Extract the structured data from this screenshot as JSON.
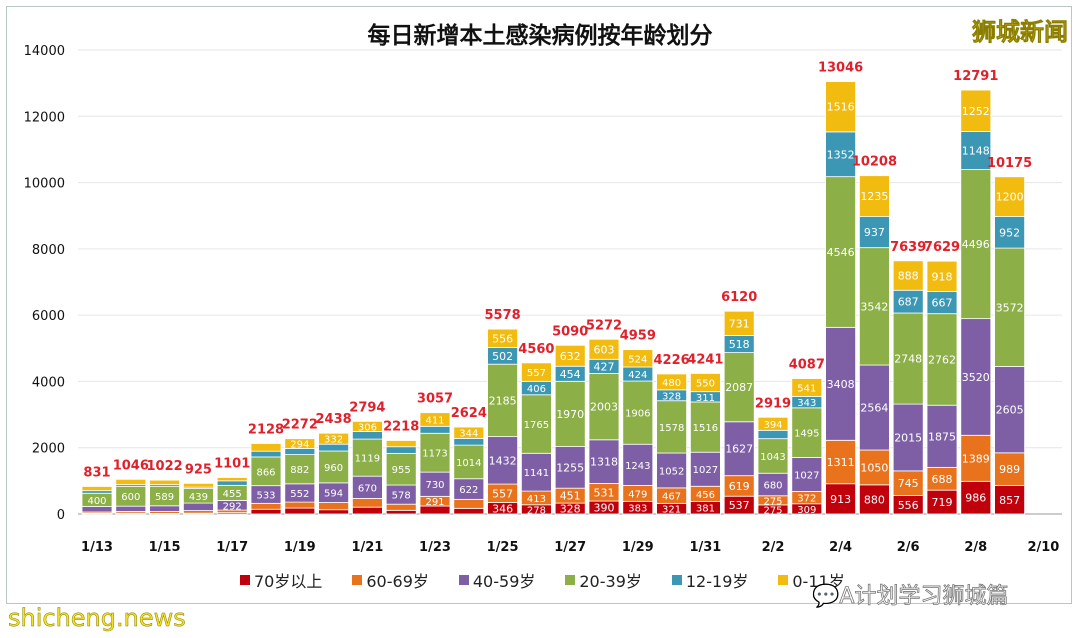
{
  "chart_data": {
    "type": "bar",
    "stacked": true,
    "title": "每日新增本土感染病例按年龄划分",
    "categories": [
      "1/13",
      "1/14",
      "1/15",
      "1/16",
      "1/17",
      "1/18",
      "1/19",
      "1/20",
      "1/21",
      "1/22",
      "1/23",
      "1/24",
      "1/25",
      "1/26",
      "1/27",
      "1/28",
      "1/29",
      "1/30",
      "1/31",
      "2/1",
      "2/2",
      "2/3",
      "2/4",
      "2/5",
      "2/6",
      "2/7",
      "2/8",
      "2/9"
    ],
    "x_tick_labels": [
      "1/13",
      "1/15",
      "1/17",
      "1/19",
      "1/21",
      "1/23",
      "1/25",
      "1/27",
      "1/29",
      "1/31",
      "2/2",
      "2/4",
      "2/6",
      "2/8",
      "2/10"
    ],
    "totals": [
      831,
      1046,
      1022,
      925,
      1101,
      2128,
      2272,
      2438,
      2794,
      2218,
      3057,
      2624,
      5578,
      4560,
      5090,
      5272,
      4959,
      4226,
      4241,
      6120,
      2919,
      4087,
      13046,
      10208,
      7639,
      7629,
      12791,
      10175
    ],
    "series": [
      {
        "name": "70岁以上",
        "color": "#c0000b",
        "values": [
          20,
          25,
          18,
          25,
          40,
          143,
          178,
          129,
          206,
          111,
          242,
          171,
          346,
          278,
          328,
          390,
          383,
          321,
          381,
          537,
          275,
          309,
          913,
          880,
          556,
          719,
          986,
          857
        ]
      },
      {
        "name": "60-69岁",
        "color": "#e8731c",
        "values": [
          40,
          50,
          55,
          79,
          78,
          179,
          181,
          217,
          265,
          185,
          291,
          271,
          557,
          413,
          451,
          531,
          479,
          467,
          456,
          619,
          275,
          372,
          1311,
          1050,
          745,
          688,
          1389,
          989
        ]
      },
      {
        "name": "40-59岁",
        "color": "#7e5fa6",
        "values": [
          166,
          161,
          175,
          225,
          292,
          533,
          552,
          594,
          670,
          578,
          730,
          622,
          1432,
          1141,
          1255,
          1318,
          1243,
          1052,
          1027,
          1627,
          680,
          1027,
          3408,
          2564,
          2015,
          1875,
          3520,
          2605
        ]
      },
      {
        "name": "20-39岁",
        "color": "#8caf47",
        "values": [
          400,
          600,
          589,
          439,
          455,
          866,
          882,
          960,
          1119,
          955,
          1173,
          1014,
          2185,
          1765,
          1970,
          2003,
          1906,
          1578,
          1516,
          2087,
          1043,
          1495,
          4546,
          3542,
          2748,
          2762,
          4496,
          3572
        ]
      },
      {
        "name": "12-19岁",
        "color": "#3c97b5",
        "values": [
          78,
          51,
          50,
          41,
          136,
          174,
          185,
          206,
          228,
          201,
          210,
          202,
          502,
          406,
          454,
          427,
          424,
          328,
          311,
          518,
          252,
          343,
          1352,
          937,
          687,
          667,
          1148,
          952
        ]
      },
      {
        "name": "0-11岁",
        "color": "#f2bb0f",
        "values": [
          127,
          159,
          135,
          116,
          100,
          233,
          294,
          332,
          306,
          188,
          411,
          344,
          556,
          557,
          632,
          603,
          524,
          480,
          550,
          731,
          394,
          541,
          1516,
          1235,
          888,
          918,
          1252,
          1200
        ]
      }
    ],
    "ylim": [
      0,
      14000
    ],
    "y_ticks": [
      0,
      2000,
      4000,
      6000,
      8000,
      10000,
      12000,
      14000
    ],
    "grid": true,
    "legend": "bottom",
    "total_label_color": "#e0202a"
  },
  "watermarks": {
    "brand": "狮城新闻",
    "site": "shicheng.news",
    "wechat": "A计划学习狮城篇"
  }
}
